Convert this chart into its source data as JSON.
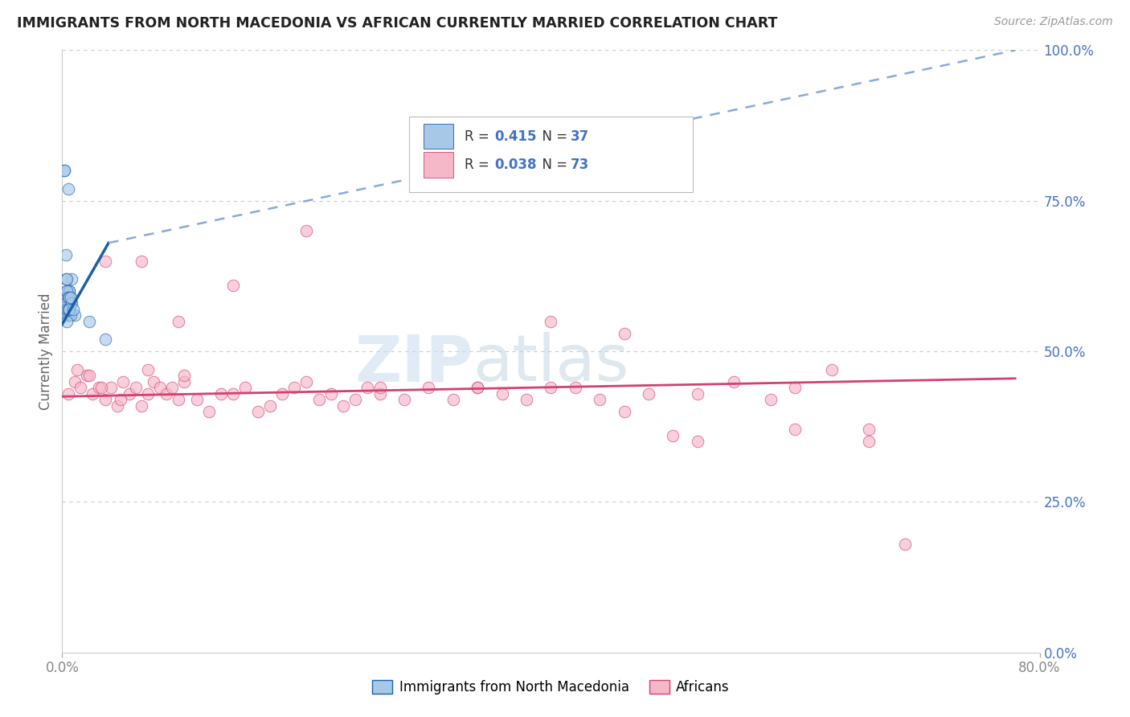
{
  "title": "IMMIGRANTS FROM NORTH MACEDONIA VS AFRICAN CURRENTLY MARRIED CORRELATION CHART",
  "source_text": "Source: ZipAtlas.com",
  "ylabel": "Currently Married",
  "right_ytick_labels": [
    "0.0%",
    "25.0%",
    "50.0%",
    "75.0%",
    "100.0%"
  ],
  "right_ytick_values": [
    0,
    25,
    50,
    75,
    100
  ],
  "xlim": [
    0,
    80
  ],
  "ylim": [
    0,
    100
  ],
  "xtick_labels": [
    "0.0%",
    "80.0%"
  ],
  "xtick_values": [
    0,
    80
  ],
  "blue_R": "0.415",
  "blue_N": "37",
  "pink_R": "0.038",
  "pink_N": "73",
  "blue_color": "#a8c8e8",
  "pink_color": "#f5b8c8",
  "blue_line_color": "#1a5fa8",
  "pink_line_color": "#d44070",
  "dashed_line_color": "#88aadd",
  "legend_label_1": "Immigrants from North Macedonia",
  "legend_label_2": "Africans",
  "watermark_zip": "ZIP",
  "watermark_atlas": "atlas",
  "background_color": "#ffffff",
  "grid_color": "#cccccc",
  "title_color": "#222222",
  "blue_scatter_x": [
    0.3,
    1.0,
    0.5,
    0.8,
    0.4,
    0.6,
    0.7,
    0.5,
    2.2,
    0.4,
    0.3,
    0.6,
    0.5,
    0.4,
    0.7,
    0.2,
    0.4,
    0.5,
    0.6,
    0.4,
    0.5,
    0.3,
    0.4,
    0.5,
    0.6,
    0.7,
    0.5,
    0.4,
    0.6,
    0.5,
    0.8,
    0.4,
    0.2,
    0.6,
    0.7,
    0.9,
    3.5
  ],
  "blue_scatter_y": [
    66,
    56,
    77,
    62,
    60,
    60,
    58,
    57,
    55,
    58,
    62,
    60,
    57,
    56,
    59,
    80,
    62,
    58,
    58,
    59,
    57,
    58,
    60,
    56,
    57,
    56,
    59,
    57,
    59,
    57,
    58,
    55,
    80,
    57,
    59,
    57,
    52
  ],
  "pink_scatter_x": [
    0.5,
    1.0,
    1.5,
    2.0,
    2.5,
    3.0,
    3.5,
    4.0,
    4.5,
    5.0,
    5.5,
    6.0,
    6.5,
    7.0,
    7.5,
    8.0,
    8.5,
    9.0,
    9.5,
    10.0,
    11.0,
    12.0,
    13.0,
    14.0,
    15.0,
    16.0,
    17.0,
    18.0,
    19.0,
    20.0,
    21.0,
    22.0,
    23.0,
    24.0,
    25.0,
    26.0,
    28.0,
    30.0,
    32.0,
    34.0,
    36.0,
    38.0,
    40.0,
    42.0,
    44.0,
    46.0,
    48.0,
    50.0,
    52.0,
    55.0,
    58.0,
    60.0,
    63.0,
    66.0,
    69.0,
    1.2,
    2.2,
    3.2,
    4.8,
    7.0,
    10.0,
    14.0,
    20.0,
    26.0,
    34.0,
    40.0,
    46.0,
    52.0,
    60.0,
    66.0,
    3.5,
    6.5,
    9.5
  ],
  "pink_scatter_y": [
    43,
    45,
    44,
    46,
    43,
    44,
    42,
    44,
    41,
    45,
    43,
    44,
    41,
    43,
    45,
    44,
    43,
    44,
    42,
    45,
    42,
    40,
    43,
    43,
    44,
    40,
    41,
    43,
    44,
    45,
    42,
    43,
    41,
    42,
    44,
    43,
    42,
    44,
    42,
    44,
    43,
    42,
    44,
    44,
    42,
    40,
    43,
    36,
    43,
    45,
    42,
    44,
    47,
    35,
    18,
    47,
    46,
    44,
    42,
    47,
    46,
    61,
    70,
    44,
    44,
    55,
    53,
    35,
    37,
    37,
    65,
    65,
    55
  ],
  "blue_trend_x0": 0.0,
  "blue_trend_y0": 54.5,
  "blue_trend_x1": 3.8,
  "blue_trend_y1": 68.0,
  "blue_dash_x0": 3.8,
  "blue_dash_y0": 68.0,
  "blue_dash_x1": 78.0,
  "blue_dash_y1": 100.0,
  "pink_trend_x0": 0.0,
  "pink_trend_y0": 42.5,
  "pink_trend_x1": 78.0,
  "pink_trend_y1": 45.5
}
